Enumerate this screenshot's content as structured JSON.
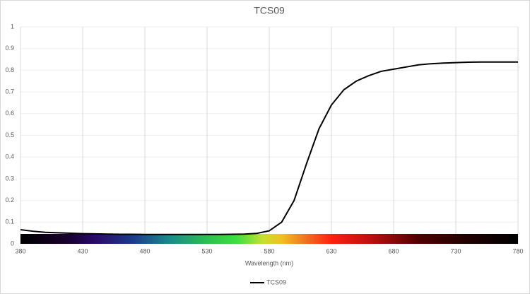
{
  "chart_data": {
    "type": "line",
    "title": "TCS09",
    "x_label": "Wavelength (nm)",
    "x": [
      380,
      390,
      400,
      410,
      420,
      430,
      440,
      450,
      460,
      470,
      480,
      490,
      500,
      510,
      520,
      530,
      540,
      550,
      560,
      570,
      580,
      590,
      600,
      610,
      620,
      630,
      640,
      650,
      660,
      670,
      680,
      690,
      700,
      710,
      720,
      730,
      740,
      750,
      760,
      770,
      780
    ],
    "series": [
      {
        "name": "TCS09",
        "color": "#000000",
        "values": [
          0.065,
          0.058,
          0.053,
          0.051,
          0.049,
          0.047,
          0.046,
          0.045,
          0.044,
          0.044,
          0.043,
          0.043,
          0.043,
          0.043,
          0.043,
          0.043,
          0.043,
          0.044,
          0.045,
          0.048,
          0.06,
          0.1,
          0.2,
          0.37,
          0.53,
          0.64,
          0.71,
          0.75,
          0.775,
          0.795,
          0.805,
          0.815,
          0.825,
          0.83,
          0.833,
          0.835,
          0.837,
          0.838,
          0.838,
          0.838,
          0.838
        ]
      }
    ],
    "xlim": [
      380,
      780
    ],
    "xticks": [
      380,
      430,
      480,
      530,
      580,
      630,
      680,
      730,
      780
    ],
    "ylim": [
      0,
      1
    ],
    "yticks": [
      0,
      0.1,
      0.2,
      0.3,
      0.4,
      0.5,
      0.6,
      0.7,
      0.8,
      0.9,
      1
    ],
    "grid": true,
    "legend": "bottom"
  }
}
